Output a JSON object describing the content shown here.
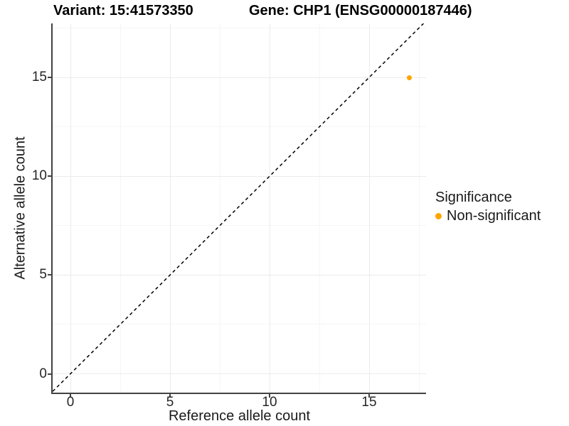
{
  "header": {
    "variant_title": "Variant: 15:41573350",
    "gene_title": "Gene: CHP1 (ENSG00000187446)"
  },
  "legend": {
    "title": "Significance",
    "items": [
      {
        "label": "Non-significant",
        "color": "#FFA500"
      }
    ]
  },
  "chart_data": {
    "type": "scatter",
    "title": "Variant: 15:41573350 / Gene: CHP1 (ENSG00000187446)",
    "xlabel": "Reference allele count",
    "ylabel": "Alternative allele count",
    "x_ticks": [
      0,
      5,
      10,
      15
    ],
    "y_ticks": [
      0,
      5,
      10,
      15
    ],
    "x_minor_ticks": [
      2.5,
      7.5,
      12.5,
      17.5
    ],
    "y_minor_ticks": [
      2.5,
      7.5,
      12.5,
      17.5
    ],
    "xlim": [
      -0.89,
      17.86
    ],
    "ylim": [
      -0.95,
      17.73
    ],
    "grid": "major+minor",
    "legend_position": "right-middle",
    "series": [
      {
        "name": "Non-significant",
        "color": "#FFA500",
        "points": [
          {
            "x": 17,
            "y": 15
          }
        ]
      }
    ],
    "reference_line": {
      "type": "identity y=x",
      "style": "dashed",
      "color": "#000000"
    }
  }
}
